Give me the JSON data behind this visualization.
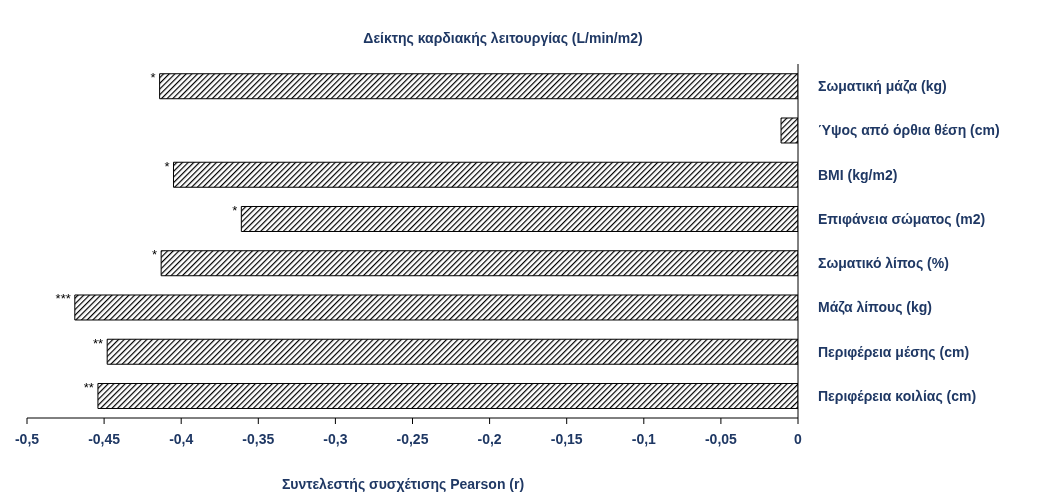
{
  "chart_data": {
    "type": "bar",
    "orientation": "horizontal",
    "title": "Δείκτης καρδιακής λειτουργίας (L/min/m2)",
    "xlabel": "Συντελεστής συσχέτισης Pearson (r)",
    "categories": [
      "Σωματική μάζα (kg)",
      "Ύψος από όρθια θέση (cm)",
      "BMI (kg/m2)",
      "Επιφάνεια σώματος (m2)",
      "Σωματικό λίπος (%)",
      "Μάζα λίπους (kg)",
      "Περιφέρεια μέσης (cm)",
      "Περιφέρεια κοιλίας (cm)"
    ],
    "values": [
      -0.414,
      -0.011,
      -0.405,
      -0.361,
      -0.413,
      -0.469,
      -0.448,
      -0.454
    ],
    "color": "#000000",
    "xlim": [
      -0.5,
      0
    ],
    "xticks": [
      {
        "value": -0.5,
        "label": "-0,5"
      },
      {
        "value": -0.45,
        "label": "-0,45"
      },
      {
        "value": -0.4,
        "label": "-0,4"
      },
      {
        "value": -0.35,
        "label": "-0,35"
      },
      {
        "value": -0.3,
        "label": "-0,3"
      },
      {
        "value": -0.25,
        "label": "-0,25"
      },
      {
        "value": -0.2,
        "label": "-0,2"
      },
      {
        "value": -0.15,
        "label": "-0,15"
      },
      {
        "value": -0.1,
        "label": "-0,1"
      },
      {
        "value": -0.05,
        "label": "-0,05"
      },
      0
    ],
    "grid": false,
    "legend": false,
    "annotations": [
      {
        "text": "*",
        "x": -0.414,
        "y": "Σωματική μάζα (kg)"
      },
      {
        "text": "*",
        "x": -0.405,
        "y": "BMI (kg/m2)"
      },
      {
        "text": "*",
        "x": -0.361,
        "y": "Επιφάνεια σώματος (m2)"
      },
      {
        "text": "*",
        "x": -0.413,
        "y": "Σωματικό λίπος (%)"
      },
      {
        "text": "***",
        "x": -0.469,
        "y": "Μάζα λίπους (kg)"
      },
      {
        "text": "**",
        "x": -0.448,
        "y": "Περιφέρεια μέσης (cm)"
      },
      {
        "text": "**",
        "x": -0.454,
        "y": "Περιφέρεια κοιλίας (cm)"
      }
    ]
  }
}
